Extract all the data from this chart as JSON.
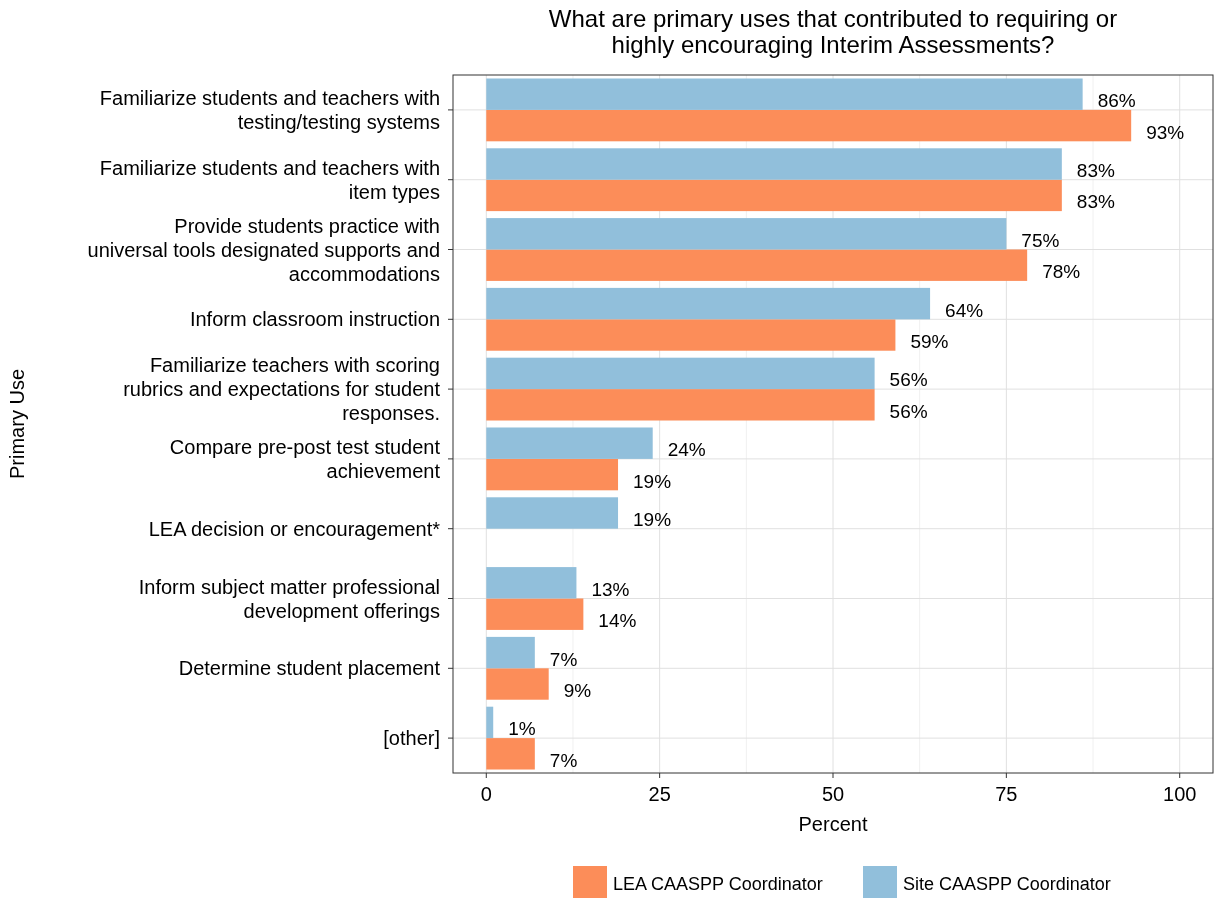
{
  "chart_data": {
    "type": "bar",
    "orientation": "horizontal",
    "title": "What are primary uses that contributed to requiring or\nhighly encouraging Interim Assessments?",
    "xlabel": "Percent",
    "ylabel": "Primary Use",
    "categories": [
      "Familiarize students and teachers with\ntesting/testing systems",
      "Familiarize students and teachers with\nitem types",
      "Provide students practice with\nuniversal tools designated supports and\naccommodations",
      "Inform classroom instruction",
      "Familiarize teachers with scoring\nrubrics and expectations for student\nresponses.",
      "Compare pre-post test student\nachievement",
      "LEA decision or encouragement*",
      "Inform subject matter professional\ndevelopment offerings",
      "Determine student placement",
      "[other]"
    ],
    "series": [
      {
        "name": "LEA CAASPP Coordinator",
        "color": "#fc8d59",
        "values": [
          93,
          83,
          78,
          59,
          56,
          19,
          null,
          14,
          9,
          7
        ],
        "value_labels": [
          "93%",
          "83%",
          "78%",
          "59%",
          "56%",
          "19%",
          null,
          "14%",
          "9%",
          "7%"
        ]
      },
      {
        "name": "Site CAASPP Coordinator",
        "color": "#91bfdb",
        "values": [
          86,
          83,
          75,
          64,
          56,
          24,
          19,
          13,
          7,
          1
        ],
        "value_labels": [
          "86%",
          "83%",
          "75%",
          "64%",
          "56%",
          "24%",
          "19%",
          "13%",
          "7%",
          "1%"
        ]
      }
    ],
    "xlim": [
      -4.8,
      104.8
    ],
    "xticks": [
      0,
      25,
      50,
      75,
      100
    ],
    "grid": true,
    "legend": "bottom"
  }
}
